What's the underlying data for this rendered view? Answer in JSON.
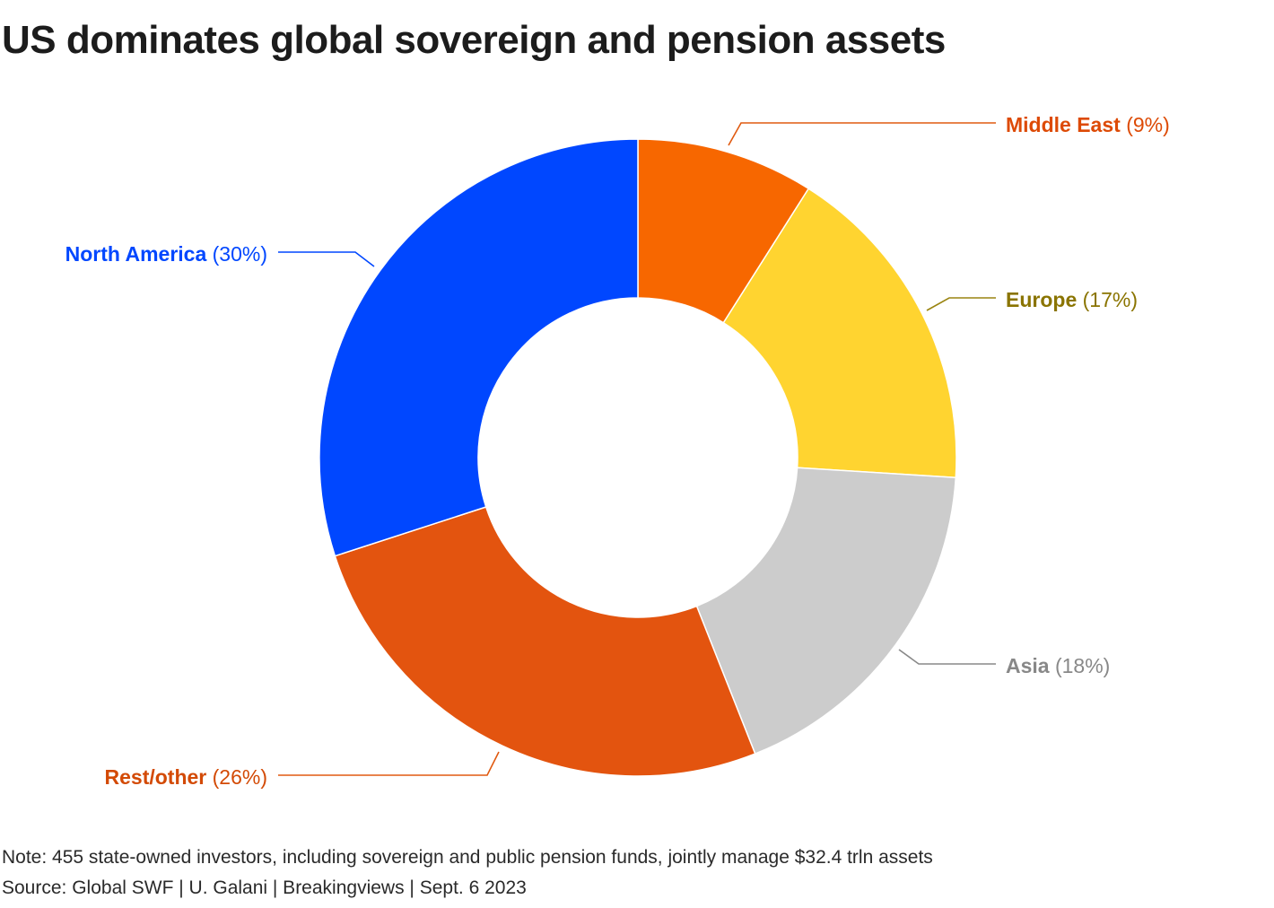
{
  "title": "US dominates global sovereign and pension assets",
  "note": "Note: 455 state-owned investors, including sovereign and public pension funds, jointly manage $32.4 trln assets",
  "source": "Source: Global SWF | U. Galani | Breakingviews | Sept. 6 2023",
  "chart_data": {
    "type": "pie",
    "donut": true,
    "title": "US dominates global sovereign and pension assets",
    "start": "top, clockwise",
    "slices": [
      {
        "label": "Middle East",
        "pct_text": "(9%)",
        "value": 9,
        "color": "#f76700",
        "label_color": "#dd4a05",
        "line_color": "#e05a10"
      },
      {
        "label": "Europe",
        "pct_text": "(17%)",
        "value": 17,
        "color": "#ffd430",
        "label_color": "#8a7400",
        "line_color": "#9a8410"
      },
      {
        "label": "Asia",
        "pct_text": "(18%)",
        "value": 18,
        "color": "#cccccc",
        "label_color": "#888888",
        "line_color": "#888888"
      },
      {
        "label": "Rest/other",
        "pct_text": "(26%)",
        "value": 26,
        "color": "#e3540f",
        "label_color": "#d34a05",
        "line_color": "#e05a10"
      },
      {
        "label": "North America",
        "pct_text": "(30%)",
        "value": 30,
        "color": "#0047ff",
        "label_color": "#0047ff",
        "line_color": "#0047ff"
      }
    ]
  }
}
